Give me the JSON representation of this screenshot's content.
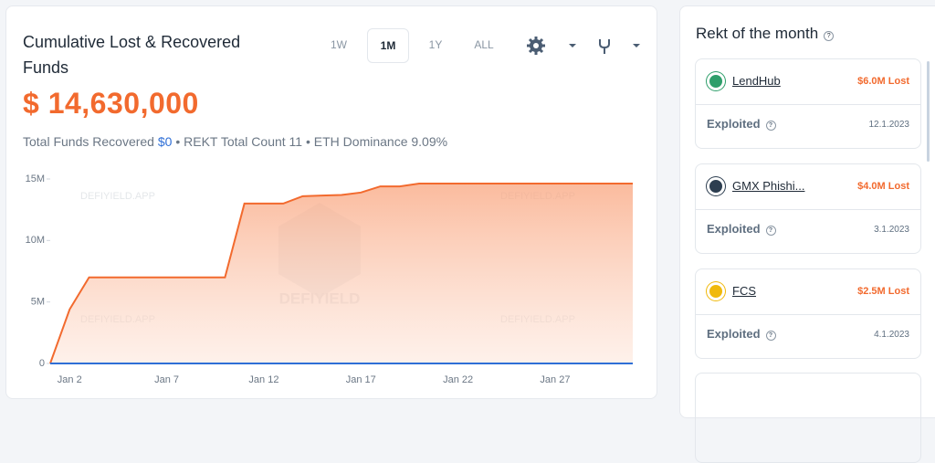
{
  "header": {
    "title": "Cumulative Lost & Recovered Funds",
    "total": "$ 14,630,000",
    "ranges": [
      "1W",
      "1M",
      "1Y",
      "ALL"
    ],
    "active_range_index": 1,
    "stats": {
      "recovered_label": "Total Funds Recovered",
      "recovered_value": "$0",
      "separator": "•",
      "count": "REKT Total Count 11",
      "dominance": "ETH Dominance 9.09%"
    }
  },
  "watermark": {
    "text": "DEFIYIELD.APP",
    "logo": "DEFIYIELD"
  },
  "chart_data": {
    "type": "area",
    "categories": [
      null,
      "Jan 2",
      null,
      null,
      null,
      null,
      "Jan 7",
      null,
      null,
      null,
      null,
      "Jan 12",
      null,
      null,
      null,
      null,
      "Jan 17",
      null,
      null,
      null,
      null,
      "Jan 22",
      null,
      null,
      null,
      null,
      "Jan 27",
      null,
      null,
      null,
      null
    ],
    "series": [
      {
        "color": "#f26a2e",
        "values": [
          0,
          4.4,
          7.0,
          7.0,
          7.0,
          7.0,
          7.0,
          7.0,
          7.0,
          7.0,
          13.0,
          13.0,
          13.0,
          13.6,
          13.65,
          13.7,
          13.9,
          14.4,
          14.4,
          14.63,
          14.63,
          14.63,
          14.63,
          14.63,
          14.63,
          14.63,
          14.63,
          14.63,
          14.63,
          14.63,
          14.63
        ]
      },
      {
        "color": "#2f6fd6",
        "values": [
          0,
          0,
          0,
          0,
          0,
          0,
          0,
          0,
          0,
          0,
          0,
          0,
          0,
          0,
          0,
          0,
          0,
          0,
          0,
          0,
          0,
          0,
          0,
          0,
          0,
          0,
          0,
          0,
          0,
          0,
          0
        ]
      }
    ],
    "ylim": [
      0,
      15
    ],
    "yticks": [
      0,
      {
        "value": 5,
        "label": "5M"
      },
      {
        "value": 10,
        "label": "10M"
      },
      {
        "value": 15,
        "label": "15M"
      }
    ],
    "grid": false
  },
  "sidebar": {
    "title": "Rekt of the month",
    "items": [
      {
        "name": "LendHub",
        "amount": "$6.0M Lost",
        "status": "Exploited",
        "date": "12.1.2023",
        "color": "#2e9e6a"
      },
      {
        "name": "GMX Phishi...",
        "amount": "$4.0M Lost",
        "status": "Exploited",
        "date": "3.1.2023",
        "color": "#2d3e50"
      },
      {
        "name": "FCS",
        "amount": "$2.5M Lost",
        "status": "Exploited",
        "date": "4.1.2023",
        "color": "#f0b90b"
      }
    ]
  }
}
